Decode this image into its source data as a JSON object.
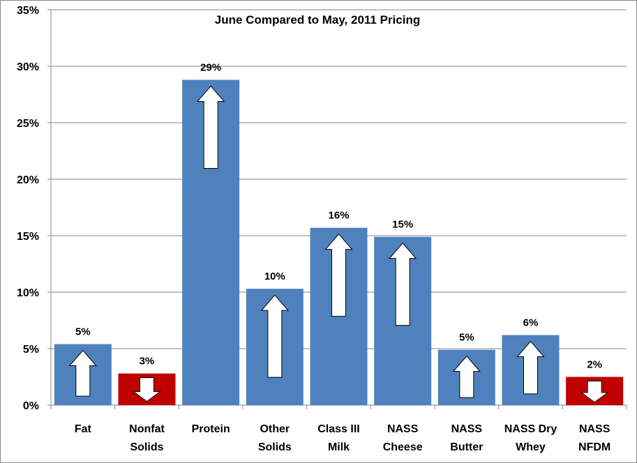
{
  "chart_data": {
    "type": "bar",
    "title": "June Compared to May, 2011 Pricing",
    "categories": [
      [
        "Fat"
      ],
      [
        "Nonfat",
        "Solids"
      ],
      [
        "Protein"
      ],
      [
        "Other",
        "Solids"
      ],
      [
        "Class III",
        "Milk"
      ],
      [
        "NASS",
        "Cheese"
      ],
      [
        "NASS",
        "Butter"
      ],
      [
        "NASS Dry",
        "Whey"
      ],
      [
        "NASS",
        "NFDM"
      ]
    ],
    "values": [
      5.4,
      2.8,
      28.8,
      10.3,
      15.7,
      14.9,
      4.9,
      6.2,
      2.5
    ],
    "data_labels": [
      "5%",
      "3%",
      "29%",
      "10%",
      "16%",
      "15%",
      "5%",
      "6%",
      "2%"
    ],
    "direction": [
      "up",
      "down",
      "up",
      "up",
      "up",
      "up",
      "up",
      "up",
      "down"
    ],
    "colors": {
      "up": "#4F81BD",
      "down": "#C00000",
      "grid": "#868686"
    },
    "ylim": [
      0,
      35
    ],
    "yticks": [
      "0%",
      "5%",
      "10%",
      "15%",
      "20%",
      "25%",
      "30%",
      "35%"
    ],
    "grid": true,
    "legend": "none",
    "xlabel": "",
    "ylabel": ""
  }
}
